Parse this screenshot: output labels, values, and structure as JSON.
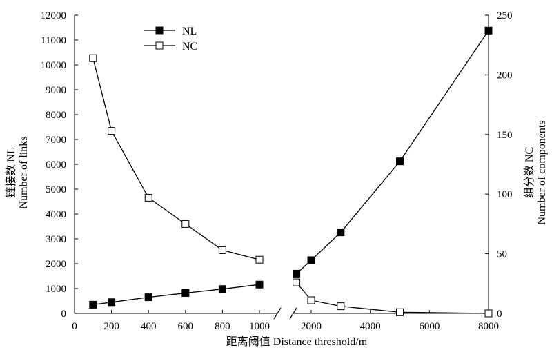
{
  "chart_data": {
    "type": "line",
    "title": "",
    "xlabel": "距离阈值 Distance threshold/m",
    "ylabel_left": [
      "链接数 NL",
      "Number of links"
    ],
    "ylabel_right": [
      "组分数 NC",
      "Number of components"
    ],
    "x_axis": {
      "broken": true,
      "segment_1": {
        "range": [
          0,
          1000
        ],
        "ticks": [
          0,
          200,
          400,
          600,
          800,
          1000
        ]
      },
      "segment_2": {
        "range": [
          1000,
          8000
        ],
        "ticks": [
          2000,
          4000,
          6000,
          8000
        ]
      }
    },
    "y_left": {
      "range": [
        0,
        12000
      ],
      "ticks": [
        0,
        1000,
        2000,
        3000,
        4000,
        5000,
        6000,
        7000,
        8000,
        9000,
        10000,
        11000,
        12000
      ]
    },
    "y_right": {
      "range": [
        0,
        250
      ],
      "ticks": [
        0,
        50,
        100,
        150,
        200,
        250
      ]
    },
    "legend": {
      "position": "top-left",
      "entries": [
        "NL",
        "NC"
      ]
    },
    "grid": false,
    "series": [
      {
        "name": "NL",
        "axis": "left",
        "marker": "filled-square",
        "segments": [
          {
            "x": [
              100,
              200,
              400,
              600,
              800,
              1000
            ],
            "y": [
              350,
              450,
              650,
              820,
              980,
              1160
            ]
          },
          {
            "x": [
              1500,
              2000,
              3000,
              5000,
              8000
            ],
            "y": [
              1600,
              2140,
              3260,
              6120,
              11380
            ]
          }
        ]
      },
      {
        "name": "NC",
        "axis": "right",
        "marker": "open-square",
        "segments": [
          {
            "x": [
              100,
              200,
              400,
              600,
              800,
              1000
            ],
            "y": [
              214,
              153,
              97,
              75,
              53,
              45
            ]
          },
          {
            "x": [
              1500,
              2000,
              3000,
              5000,
              8000
            ],
            "y": [
              26,
              11,
              6,
              1,
              0
            ]
          }
        ]
      }
    ]
  }
}
